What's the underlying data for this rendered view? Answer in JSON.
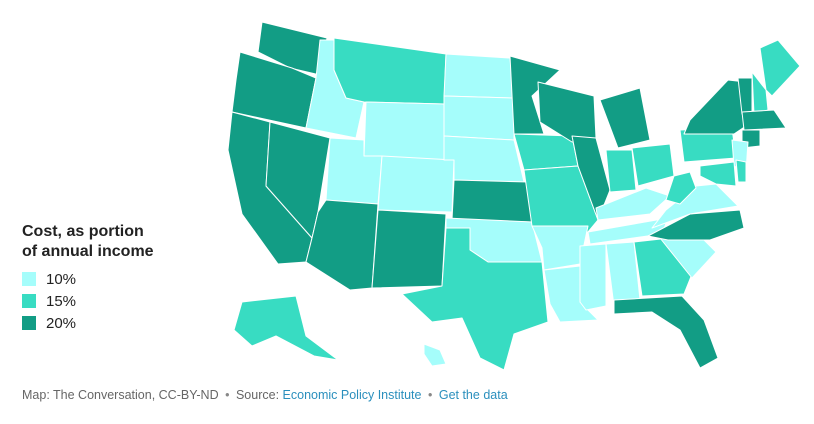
{
  "legend": {
    "title": "Cost, as portion of annual income",
    "items": [
      {
        "label": "10%",
        "color": "#a5fdfb"
      },
      {
        "label": "15%",
        "color": "#38dcc2"
      },
      {
        "label": "20%",
        "color": "#129d85"
      }
    ]
  },
  "footer": {
    "credit": "Map: The Conversation, CC-BY-ND",
    "separator": "•",
    "source_prefix": "Source: ",
    "source_link": "Economic Policy Institute",
    "data_link": "Get the data"
  },
  "states": {
    "WA": "#129d85",
    "OR": "#129d85",
    "CA": "#129d85",
    "NV": "#129d85",
    "AZ": "#129d85",
    "ID": "#a5fdfb",
    "MT": "#38dcc2",
    "WY": "#a5fdfb",
    "UT": "#a5fdfb",
    "CO": "#a5fdfb",
    "NM": "#129d85",
    "ND": "#a5fdfb",
    "SD": "#a5fdfb",
    "NE": "#a5fdfb",
    "KS": "#129d85",
    "OK": "#a5fdfb",
    "TX": "#38dcc2",
    "MN": "#129d85",
    "IA": "#38dcc2",
    "MO": "#38dcc2",
    "AR": "#a5fdfb",
    "LA": "#a5fdfb",
    "WI": "#129d85",
    "IL": "#129d85",
    "MI": "#129d85",
    "IN": "#38dcc2",
    "OH": "#38dcc2",
    "KY": "#a5fdfb",
    "TN": "#a5fdfb",
    "MS": "#a5fdfb",
    "AL": "#a5fdfb",
    "GA": "#38dcc2",
    "FL": "#129d85",
    "SC": "#a5fdfb",
    "NC": "#129d85",
    "VA": "#a5fdfb",
    "WV": "#38dcc2",
    "PA": "#38dcc2",
    "NY": "#129d85",
    "VT": "#129d85",
    "NH": "#38dcc2",
    "ME": "#38dcc2",
    "MA": "#129d85",
    "CT": "#129d85",
    "NJ": "#a5fdfb",
    "MD": "#38dcc2",
    "DE": "#38dcc2",
    "AK": "#38dcc2",
    "HI": "#a5fdfb"
  }
}
